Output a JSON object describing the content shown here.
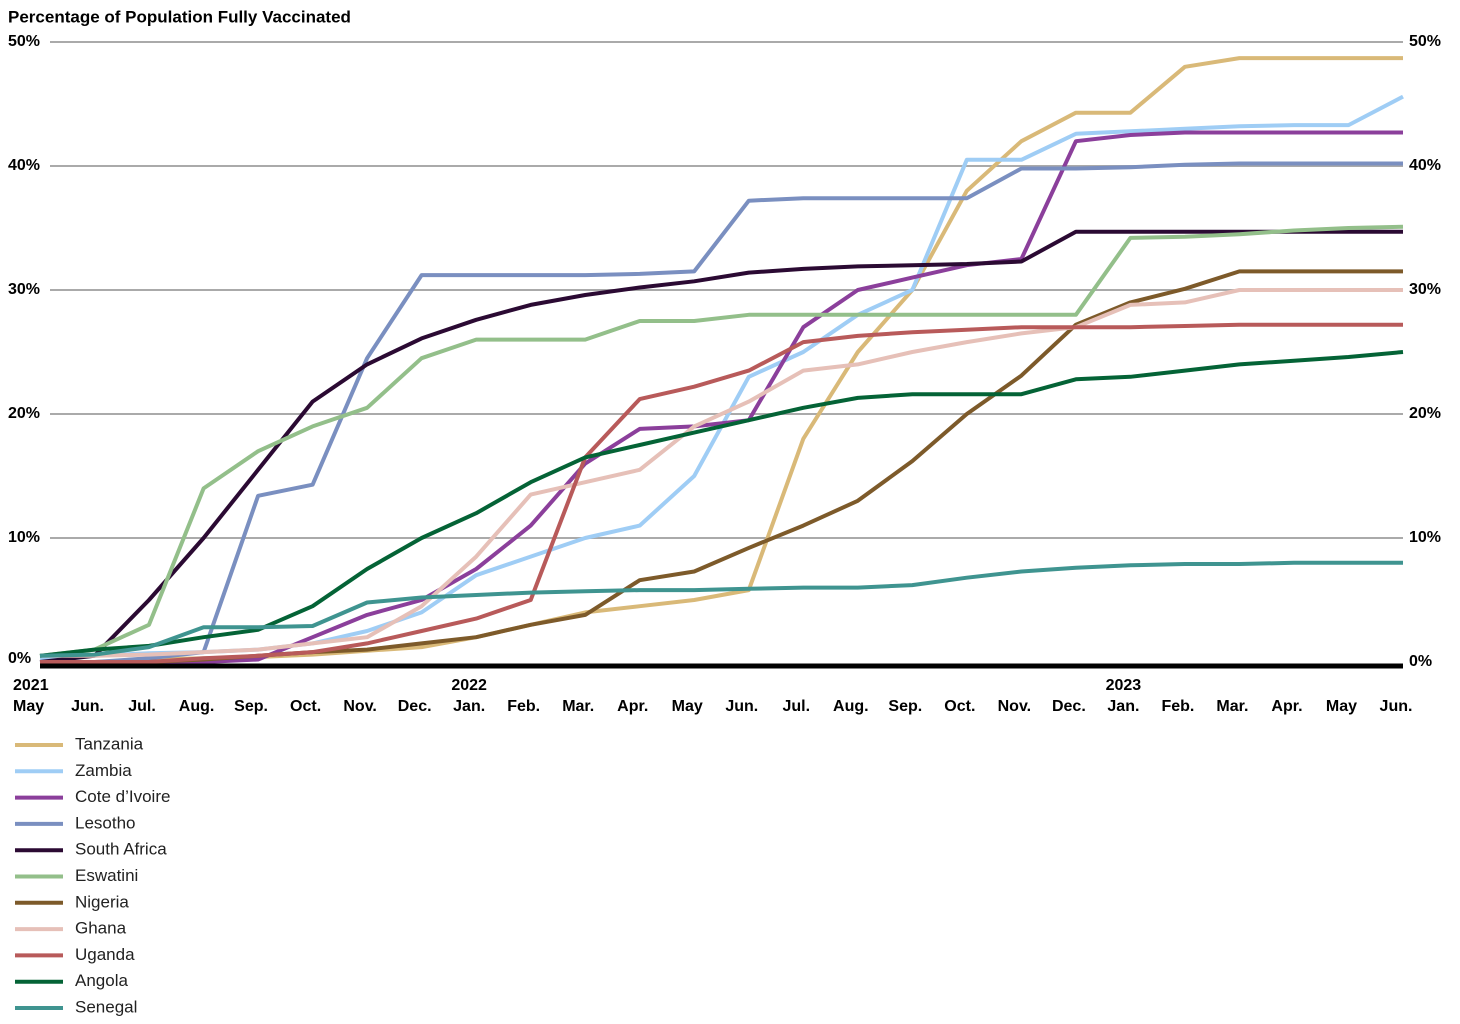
{
  "chart_data": {
    "type": "line",
    "title": "Percentage of Population Fully Vaccinated",
    "x": [
      0,
      1,
      2,
      3,
      4,
      5,
      6,
      7,
      8,
      9,
      10,
      11,
      12,
      13,
      14,
      15,
      16,
      17,
      18,
      19,
      20,
      21,
      22,
      23,
      24,
      25
    ],
    "xlim": [
      0,
      25
    ],
    "xticks": [
      {
        "value": 0,
        "label": "May"
      },
      {
        "value": 1,
        "label": "Jun."
      },
      {
        "value": 2,
        "label": "Jul."
      },
      {
        "value": 3,
        "label": "Aug."
      },
      {
        "value": 4,
        "label": "Sep."
      },
      {
        "value": 5,
        "label": "Oct."
      },
      {
        "value": 6,
        "label": "Nov."
      },
      {
        "value": 7,
        "label": "Dec."
      },
      {
        "value": 8,
        "label": "Jan."
      },
      {
        "value": 9,
        "label": "Feb."
      },
      {
        "value": 10,
        "label": "Mar."
      },
      {
        "value": 11,
        "label": "Apr."
      },
      {
        "value": 12,
        "label": "May"
      },
      {
        "value": 13,
        "label": "Jun."
      },
      {
        "value": 14,
        "label": "Jul."
      },
      {
        "value": 15,
        "label": "Aug."
      },
      {
        "value": 16,
        "label": "Sep."
      },
      {
        "value": 17,
        "label": "Oct."
      },
      {
        "value": 18,
        "label": "Nov."
      },
      {
        "value": 19,
        "label": "Dec."
      },
      {
        "value": 20,
        "label": "Jan."
      },
      {
        "value": 21,
        "label": "Feb."
      },
      {
        "value": 22,
        "label": "Mar."
      },
      {
        "value": 23,
        "label": "Apr."
      },
      {
        "value": 24,
        "label": "May"
      },
      {
        "value": 25,
        "label": "Jun."
      }
    ],
    "x_year_labels": [
      {
        "value": 0,
        "label": "2021"
      },
      {
        "value": 8,
        "label": "2022"
      },
      {
        "value": 20,
        "label": "2023"
      }
    ],
    "ylim": [
      0,
      50
    ],
    "yticks": [
      {
        "value": 0,
        "label": "0%"
      },
      {
        "value": 10,
        "label": "10%"
      },
      {
        "value": 20,
        "label": "20%"
      },
      {
        "value": 30,
        "label": "30%"
      },
      {
        "value": 40,
        "label": "40%"
      },
      {
        "value": 50,
        "label": "50%"
      }
    ],
    "grid": true,
    "legend": "bottom-left",
    "series": [
      {
        "name": "Tanzania",
        "color": "#d9b978",
        "values": [
          0,
          0,
          0.2,
          0.3,
          0.4,
          0.6,
          0.9,
          1.2,
          2,
          3,
          4,
          4.5,
          5,
          5.8,
          18,
          25,
          30,
          38,
          42,
          44.3,
          44.3,
          48,
          48.7,
          48.7,
          48.7,
          48.7
        ]
      },
      {
        "name": "Zambia",
        "color": "#9fcdf5",
        "values": [
          0.3,
          0.5,
          0.7,
          0.8,
          1,
          1.5,
          2.5,
          4,
          7,
          8.5,
          10,
          11,
          15,
          23,
          25,
          28,
          30,
          40.5,
          40.5,
          42.6,
          42.8,
          43,
          43.2,
          43.3,
          43.3,
          45.6
        ]
      },
      {
        "name": "Cote d’Ivoire",
        "color": "#8b3f9b",
        "values": [
          0,
          0,
          0,
          0,
          0.2,
          2,
          3.8,
          5,
          7.5,
          11,
          16,
          18.8,
          19,
          19.5,
          27,
          30,
          31,
          32,
          32.5,
          42,
          42.5,
          42.7,
          42.7,
          42.7,
          42.7,
          42.7
        ]
      },
      {
        "name": "Lesotho",
        "color": "#7a8fc0",
        "values": [
          0,
          0,
          0.3,
          0.8,
          13.4,
          14.3,
          24.5,
          31.2,
          31.2,
          31.2,
          31.2,
          31.3,
          31.5,
          37.2,
          37.4,
          37.4,
          37.4,
          37.4,
          39.8,
          39.8,
          39.9,
          40.1,
          40.2,
          40.2,
          40.2,
          40.2
        ]
      },
      {
        "name": "South Africa",
        "color": "#2b0a33",
        "values": [
          0,
          0.5,
          5,
          10,
          15.5,
          21,
          24,
          26.1,
          27.6,
          28.8,
          29.6,
          30.2,
          30.7,
          31.4,
          31.7,
          31.9,
          32,
          32.1,
          32.3,
          34.7,
          34.7,
          34.7,
          34.7,
          34.7,
          34.7,
          34.7
        ]
      },
      {
        "name": "Eswatini",
        "color": "#93bf8a",
        "values": [
          0.5,
          1,
          3,
          14,
          17,
          19,
          20.5,
          24.5,
          26,
          26,
          26,
          27.5,
          27.5,
          28,
          28,
          28,
          28,
          28,
          28,
          28,
          34.2,
          34.3,
          34.5,
          34.8,
          35,
          35.1
        ]
      },
      {
        "name": "Nigeria",
        "color": "#7d5a2a",
        "values": [
          0,
          0,
          0,
          0.2,
          0.5,
          0.8,
          1,
          1.5,
          2,
          3,
          3.8,
          6.6,
          7.3,
          9.2,
          11,
          13,
          16.2,
          20,
          23.1,
          27.2,
          29,
          30.1,
          31.5,
          31.5,
          31.5,
          31.5
        ]
      },
      {
        "name": "Ghana",
        "color": "#e6c0b8",
        "values": [
          0.5,
          0.5,
          0.6,
          0.8,
          1,
          1.5,
          2,
          4.5,
          8.5,
          13.5,
          14.5,
          15.5,
          19,
          21,
          23.5,
          24,
          25,
          25.8,
          26.5,
          27,
          28.8,
          29,
          30,
          30,
          30,
          30
        ]
      },
      {
        "name": "Uganda",
        "color": "#b85a5a",
        "values": [
          0,
          0,
          0,
          0.3,
          0.5,
          0.8,
          1.5,
          2.5,
          3.5,
          5,
          16.5,
          21.2,
          22.2,
          23.5,
          25.8,
          26.3,
          26.6,
          26.8,
          27,
          27,
          27,
          27.1,
          27.2,
          27.2,
          27.2,
          27.2
        ]
      },
      {
        "name": "Angola",
        "color": "#046336",
        "values": [
          0.5,
          1,
          1.3,
          2,
          2.6,
          4.5,
          7.5,
          10,
          12,
          14.5,
          16.5,
          17.5,
          18.5,
          19.5,
          20.5,
          21.3,
          21.6,
          21.6,
          21.6,
          22.8,
          23,
          23.5,
          24,
          24.3,
          24.6,
          25
        ]
      },
      {
        "name": "Senegal",
        "color": "#3f9490",
        "values": [
          0.5,
          0.6,
          1.2,
          2.8,
          2.8,
          2.9,
          4.8,
          5.2,
          5.4,
          5.6,
          5.7,
          5.8,
          5.8,
          5.9,
          6,
          6,
          6.2,
          6.8,
          7.3,
          7.6,
          7.8,
          7.9,
          7.9,
          8,
          8,
          8
        ]
      }
    ]
  }
}
